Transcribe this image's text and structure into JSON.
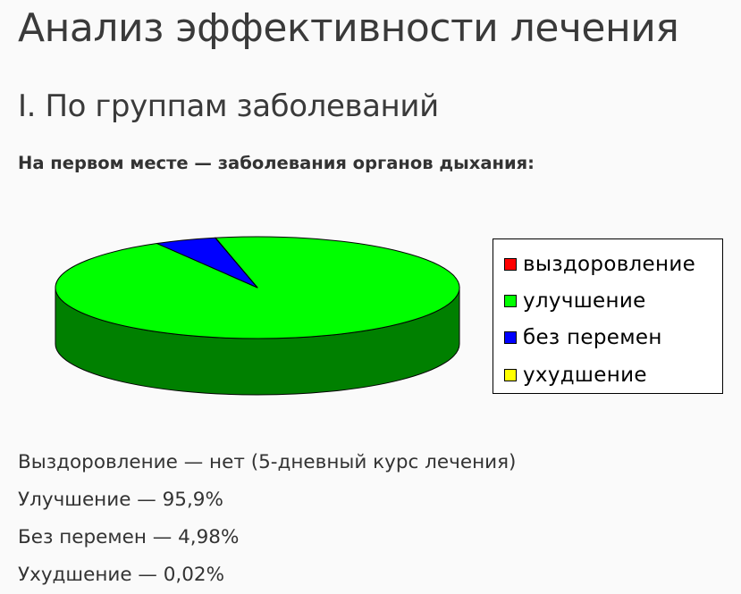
{
  "page": {
    "title": "Анализ эффективности лечения",
    "section_title": "I. По группам заболеваний",
    "intro": "На первом месте — заболевания органов дыхания:"
  },
  "chart_data": {
    "type": "pie",
    "three_d": true,
    "legend_position": "right",
    "series": [
      {
        "name": "выздоровление",
        "value": 0,
        "color": "#ff0000",
        "side_color": "#800000"
      },
      {
        "name": "улучшение",
        "value": 95.9,
        "color": "#00ff00",
        "side_color": "#008000"
      },
      {
        "name": "без перемен",
        "value": 4.98,
        "color": "#0000ff",
        "side_color": "#000080"
      },
      {
        "name": "ухудшение",
        "value": 0.02,
        "color": "#ffff00",
        "side_color": "#808000"
      }
    ]
  },
  "stats": [
    "Выздоровление — нет (5-дневный курс лечения)",
    "Улучшение — 95,9%",
    "Без перемен — 4,98%",
    "Ухудшение — 0,02%"
  ]
}
